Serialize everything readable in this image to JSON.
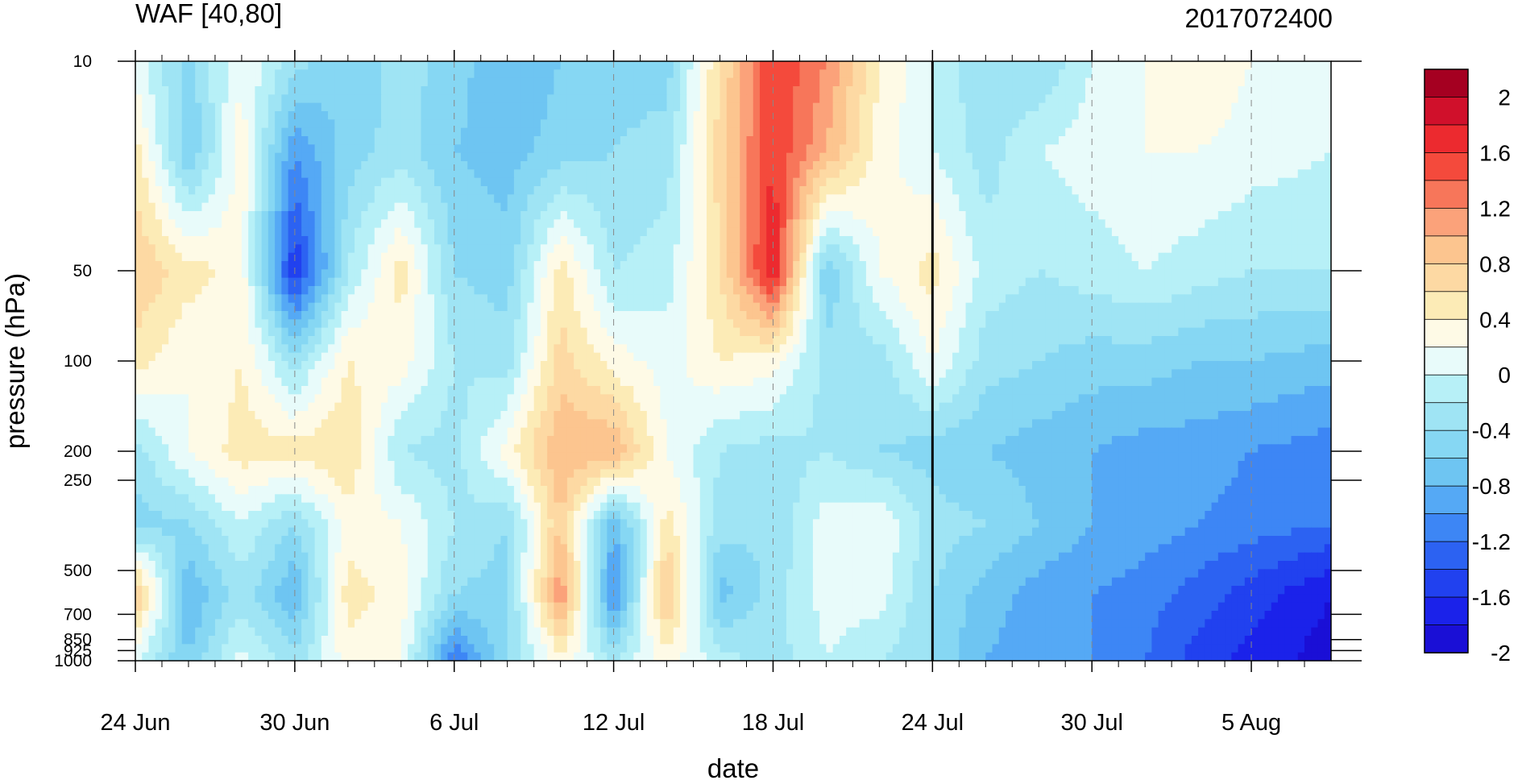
{
  "chart_data": {
    "type": "heatmap",
    "title": "WAF [40,80]",
    "subtitle_right": "2017072400",
    "xlabel": "date",
    "ylabel": "pressure (hPa)",
    "x_tick_labels": [
      "24 Jun",
      "30 Jun",
      "6 Jul",
      "12 Jul",
      "18 Jul",
      "24 Jul",
      "30 Jul",
      "5 Aug"
    ],
    "x_tick_days": [
      0,
      6,
      12,
      18,
      24,
      30,
      36,
      42
    ],
    "x_range_days": [
      0,
      45
    ],
    "y_tick_labels": [
      "10",
      "50",
      "100",
      "200",
      "250",
      "500",
      "700",
      "850",
      "925",
      "1000"
    ],
    "y_ticks": [
      10,
      50,
      100,
      200,
      250,
      500,
      700,
      850,
      925,
      1000
    ],
    "y_range": [
      10,
      1000
    ],
    "y_scale": "log (inverted)",
    "vertical_marker_label": "24 Jul",
    "colorbar": {
      "tick_labels": [
        "2",
        "1.6",
        "1.2",
        "0.8",
        "0.4",
        "0",
        "-0.4",
        "-0.8",
        "-1.2",
        "-1.6",
        "-2"
      ],
      "levels": [
        2.2,
        2.0,
        1.8,
        1.6,
        1.4,
        1.2,
        1.0,
        0.8,
        0.6,
        0.4,
        0.2,
        0.0,
        -0.2,
        -0.4,
        -0.6,
        -0.8,
        -1.0,
        -1.2,
        -1.4,
        -1.6,
        -1.8,
        -2.0,
        -2.2
      ],
      "colors": [
        "#a50021",
        "#d0102b",
        "#ec2a2f",
        "#f44a3c",
        "#f7765a",
        "#fba27a",
        "#fcc58f",
        "#fdd9a3",
        "#fcebb6",
        "#fefae6",
        "#e8fbfa",
        "#b7f0f7",
        "#9fe4f4",
        "#86d7f3",
        "#6ec5f2",
        "#55a9f5",
        "#3d86f5",
        "#2c62f2",
        "#2141ef",
        "#1b22ea",
        "#1a0fd6"
      ]
    },
    "cells": {
      "x_days": [
        0,
        2,
        4,
        6,
        8,
        10,
        12,
        14,
        16,
        18,
        20,
        22,
        24,
        26,
        28,
        30,
        32,
        34,
        36,
        38,
        40,
        42,
        45
      ],
      "pressure": [
        10,
        20,
        50,
        100,
        200,
        350,
        600,
        1000
      ],
      "rows": [
        [
          0.1,
          -0.5,
          0.2,
          -0.3,
          -0.6,
          -0.3,
          -0.5,
          -0.8,
          -0.6,
          -0.5,
          -0.5,
          0.6,
          1.6,
          1.2,
          0.4,
          0.0,
          -0.4,
          -0.4,
          0.0,
          0.2,
          0.4,
          0.2,
          0.1
        ],
        [
          0.5,
          -0.6,
          0.3,
          -1.0,
          -0.5,
          -0.3,
          -0.6,
          -0.7,
          -0.5,
          -0.4,
          -0.3,
          0.7,
          1.6,
          1.0,
          0.3,
          0.0,
          -0.3,
          0.0,
          0.1,
          0.2,
          0.2,
          0.1,
          0.0
        ],
        [
          0.8,
          0.5,
          0.3,
          -1.6,
          -0.2,
          0.5,
          -0.4,
          -0.5,
          0.5,
          -0.2,
          -0.1,
          0.6,
          1.8,
          -0.6,
          0.2,
          0.5,
          -0.1,
          -0.2,
          -0.1,
          0.0,
          -0.1,
          -0.2,
          -0.2
        ],
        [
          0.5,
          0.2,
          0.4,
          -0.3,
          0.4,
          0.3,
          -0.2,
          -0.3,
          0.7,
          0.3,
          0.1,
          0.4,
          0.3,
          -0.3,
          -0.3,
          0.2,
          -0.3,
          -0.4,
          -0.5,
          -0.5,
          -0.6,
          -0.6,
          -0.7
        ],
        [
          -0.3,
          0.2,
          0.5,
          0.5,
          0.6,
          -0.2,
          -0.3,
          0.3,
          1.0,
          1.0,
          0.2,
          -0.2,
          -0.3,
          -0.2,
          -0.4,
          -0.5,
          -0.6,
          -0.7,
          -0.8,
          -0.9,
          -0.9,
          -1.0,
          -1.1
        ],
        [
          -0.5,
          -0.4,
          0.0,
          -0.4,
          0.3,
          0.2,
          -0.2,
          -0.4,
          0.8,
          -0.8,
          0.5,
          -0.3,
          -0.4,
          0.1,
          0.2,
          -0.3,
          -0.4,
          -0.6,
          -0.8,
          -0.9,
          -1.0,
          -1.1,
          -1.2
        ],
        [
          0.9,
          -0.8,
          -0.3,
          -0.8,
          0.5,
          0.3,
          -0.4,
          -0.5,
          1.2,
          -1.1,
          0.9,
          -0.7,
          -0.3,
          0.1,
          0.1,
          -0.4,
          -0.7,
          -0.9,
          -1.0,
          -1.1,
          -1.3,
          -1.5,
          -1.8
        ],
        [
          0.0,
          -0.6,
          0.1,
          -0.3,
          0.3,
          0.2,
          -1.2,
          -0.4,
          0.3,
          -0.2,
          0.3,
          -0.1,
          -0.3,
          0.0,
          -0.2,
          -0.4,
          -0.8,
          -0.9,
          -1.0,
          -1.2,
          -1.5,
          -1.7,
          -1.9
        ]
      ]
    }
  }
}
